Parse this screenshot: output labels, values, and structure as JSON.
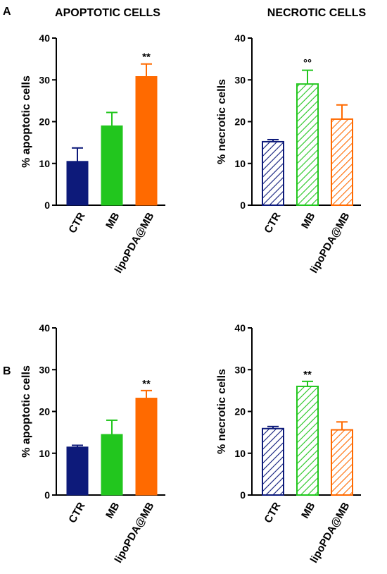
{
  "panels": [
    {
      "label": "A"
    },
    {
      "label": "B"
    }
  ],
  "column_titles": [
    "APOPTOTIC CELLS",
    "NECROTIC CELLS"
  ],
  "colors": {
    "CTR": "#0d1a7a",
    "MB": "#22c61e",
    "lipoPDA@MB": "#ff6a00"
  },
  "chart_data": [
    {
      "type": "bar",
      "title": "APOPTOTIC CELLS",
      "ylabel": "% apoptotic cells",
      "categories": [
        "CTR",
        "MB",
        "lipoPDA@MB"
      ],
      "values": [
        10.5,
        19,
        30.8
      ],
      "errors": [
        3.2,
        3.2,
        3
      ],
      "annotations": [
        "",
        "",
        "**"
      ],
      "pattern": "solid",
      "ylim": [
        0,
        40
      ],
      "yticks": [
        "0",
        "10",
        "20",
        "30",
        "40"
      ]
    },
    {
      "type": "bar",
      "title": "NECROTIC CELLS",
      "ylabel": "% necrotic cells",
      "categories": [
        "CTR",
        "MB",
        "lipoPDA@MB"
      ],
      "values": [
        15.2,
        29,
        20.6
      ],
      "errors": [
        0.5,
        3.3,
        3.4
      ],
      "annotations": [
        "",
        "°°",
        ""
      ],
      "pattern": "hatched",
      "ylim": [
        0,
        40
      ],
      "yticks": [
        "0",
        "10",
        "20",
        "30",
        "40"
      ]
    },
    {
      "type": "bar",
      "title": "",
      "ylabel": "% apoptotic cells",
      "categories": [
        "CTR",
        "MB",
        "lipoPDA@MB"
      ],
      "values": [
        11.5,
        14.5,
        23.2
      ],
      "errors": [
        0.4,
        3.4,
        1.8
      ],
      "annotations": [
        "",
        "",
        "**"
      ],
      "pattern": "solid",
      "ylim": [
        0,
        40
      ],
      "yticks": [
        "0",
        "10",
        "20",
        "30",
        "40"
      ]
    },
    {
      "type": "bar",
      "title": "",
      "ylabel": "% necrotic cells",
      "categories": [
        "CTR",
        "MB",
        "lipoPDA@MB"
      ],
      "values": [
        15.9,
        26,
        15.6
      ],
      "errors": [
        0.5,
        1.2,
        1.9
      ],
      "annotations": [
        "",
        "**",
        ""
      ],
      "pattern": "hatched",
      "ylim": [
        0,
        40
      ],
      "yticks": [
        "0",
        "10",
        "20",
        "30",
        "40"
      ]
    }
  ]
}
